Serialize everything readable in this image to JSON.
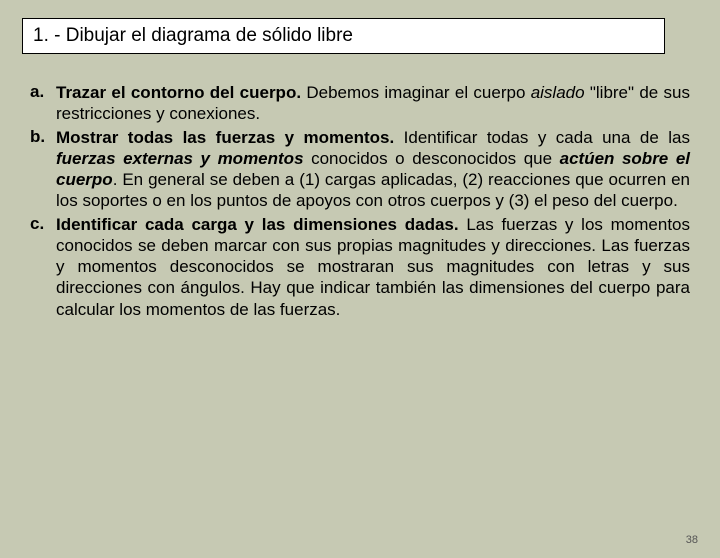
{
  "title": "1. - Dibujar el diagrama de sólido libre",
  "items": [
    {
      "letter": "a.",
      "lead": "Trazar el contorno del cuerpo.",
      "rest_pre": " Debemos imaginar el cuerpo ",
      "rest_ital": "aislado",
      "rest_post": " \"libre\" de sus restricciones y conexiones."
    },
    {
      "letter": "b.",
      "lead": "Mostrar todas las fuerzas y momentos.",
      "rest1": " Identificar todas y cada una de las ",
      "emph": "fuerzas externas y momentos",
      "rest2": " conocidos o desconocidos que ",
      "emph2": "actúen sobre el cuerpo",
      "rest3": ". En general se deben a (1) cargas aplicadas, (2) reacciones que ocurren en los soportes o en los puntos de apoyos con otros cuerpos y (3) el peso del cuerpo."
    },
    {
      "letter": "c.",
      "lead": "Identificar cada carga y las dimensiones dadas.",
      "rest": " Las fuerzas y los momentos conocidos se deben marcar con sus propias magnitudes y direcciones. Las fuerzas y momentos desconocidos se mostraran sus magnitudes con letras y sus direcciones con ángulos. Hay que indicar también las dimensiones del cuerpo para calcular los momentos de las fuerzas."
    }
  ],
  "page_number": "38"
}
